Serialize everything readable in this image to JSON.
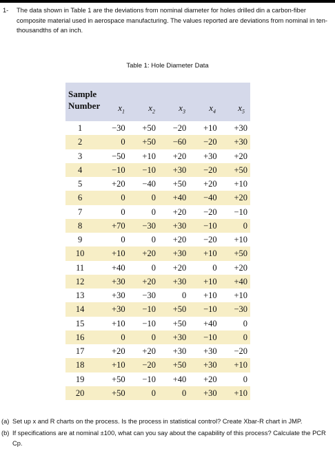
{
  "problem": {
    "number": "1-",
    "text": "The data shown in Table 1 are the deviations from nominal diameter for holes drilled din a carbon-fiber composite material used in aerospace manufacturing. The values reported are deviations from nominal in ten-thousandths of an inch."
  },
  "table": {
    "caption": "Table 1: Hole Diameter Data",
    "header_line1": "Sample",
    "header_line2": "Number",
    "columns": [
      {
        "base": "x",
        "sub": "1"
      },
      {
        "base": "x",
        "sub": "2"
      },
      {
        "base": "x",
        "sub": "3"
      },
      {
        "base": "x",
        "sub": "4"
      },
      {
        "base": "x",
        "sub": "5"
      }
    ],
    "rows": [
      {
        "n": "1",
        "v": [
          "−30",
          "+50",
          "−20",
          "+10",
          "+30"
        ]
      },
      {
        "n": "2",
        "v": [
          "0",
          "+50",
          "−60",
          "−20",
          "+30"
        ]
      },
      {
        "n": "3",
        "v": [
          "−50",
          "+10",
          "+20",
          "+30",
          "+20"
        ]
      },
      {
        "n": "4",
        "v": [
          "−10",
          "−10",
          "+30",
          "−20",
          "+50"
        ]
      },
      {
        "n": "5",
        "v": [
          "+20",
          "−40",
          "+50",
          "+20",
          "+10"
        ]
      },
      {
        "n": "6",
        "v": [
          "0",
          "0",
          "+40",
          "−40",
          "+20"
        ]
      },
      {
        "n": "7",
        "v": [
          "0",
          "0",
          "+20",
          "−20",
          "−10"
        ]
      },
      {
        "n": "8",
        "v": [
          "+70",
          "−30",
          "+30",
          "−10",
          "0"
        ]
      },
      {
        "n": "9",
        "v": [
          "0",
          "0",
          "+20",
          "−20",
          "+10"
        ]
      },
      {
        "n": "10",
        "v": [
          "+10",
          "+20",
          "+30",
          "+10",
          "+50"
        ]
      },
      {
        "n": "11",
        "v": [
          "+40",
          "0",
          "+20",
          "0",
          "+20"
        ]
      },
      {
        "n": "12",
        "v": [
          "+30",
          "+20",
          "+30",
          "+10",
          "+40"
        ]
      },
      {
        "n": "13",
        "v": [
          "+30",
          "−30",
          "0",
          "+10",
          "+10"
        ]
      },
      {
        "n": "14",
        "v": [
          "+30",
          "−10",
          "+50",
          "−10",
          "−30"
        ]
      },
      {
        "n": "15",
        "v": [
          "+10",
          "−10",
          "+50",
          "+40",
          "0"
        ]
      },
      {
        "n": "16",
        "v": [
          "0",
          "0",
          "+30",
          "−10",
          "0"
        ]
      },
      {
        "n": "17",
        "v": [
          "+20",
          "+20",
          "+30",
          "+30",
          "−20"
        ]
      },
      {
        "n": "18",
        "v": [
          "+10",
          "−20",
          "+50",
          "+30",
          "+10"
        ]
      },
      {
        "n": "19",
        "v": [
          "+50",
          "−10",
          "+40",
          "+20",
          "0"
        ]
      },
      {
        "n": "20",
        "v": [
          "+50",
          "0",
          "0",
          "+30",
          "+10"
        ]
      }
    ]
  },
  "questions": [
    {
      "label": "(a)",
      "text": "Set up x and R charts on the process. Is the process in statistical control? Create Xbar-R chart in JMP."
    },
    {
      "label": "(b)",
      "text": "If specifications are at nominal ±100, what can you say about the capability of this process? Calculate the PCR Cp."
    }
  ],
  "colors": {
    "header_bg": "#d5d9ea",
    "shaded_row_bg": "#f7eec6"
  }
}
